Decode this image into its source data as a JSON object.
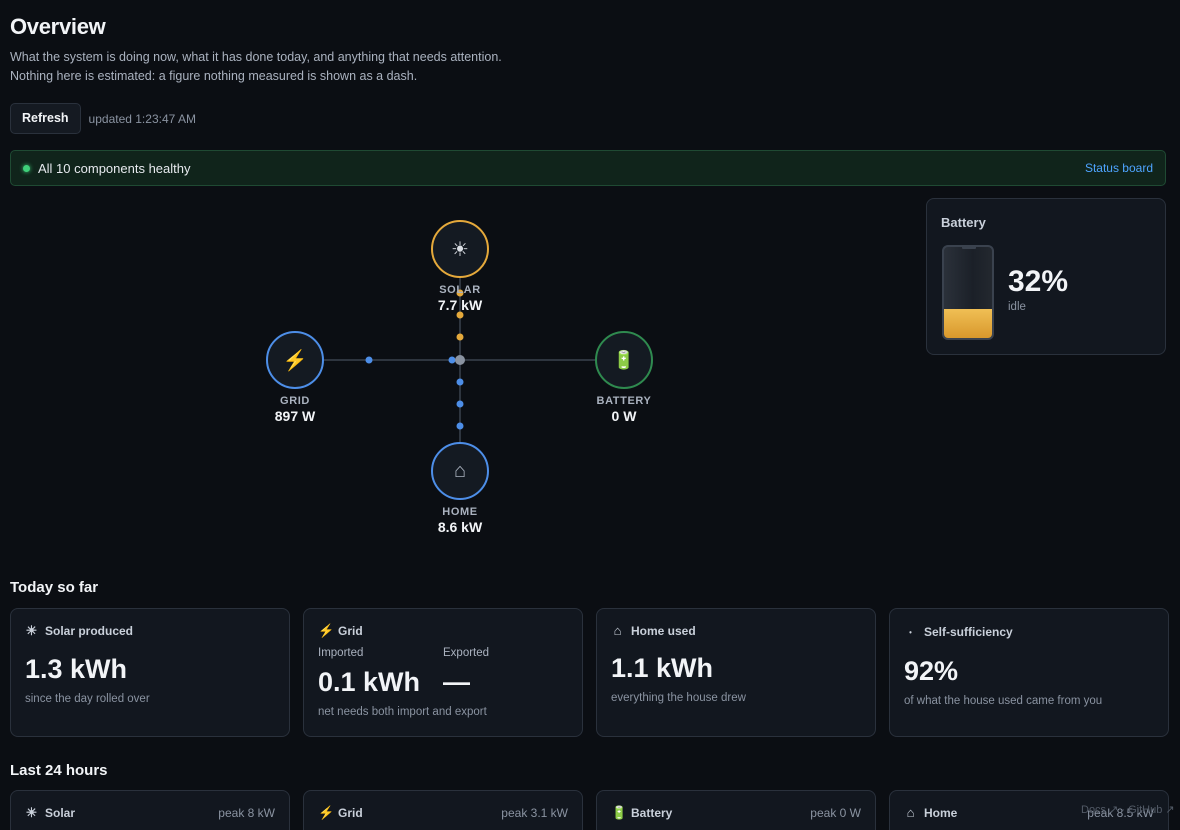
{
  "header": {
    "title": "Overview",
    "subtitle_line1": "What the system is doing now, what it has done today, and anything that needs attention.",
    "subtitle_line2": "Nothing here is estimated: a figure nothing measured is shown as a dash."
  },
  "toolbar": {
    "refresh_label": "Refresh",
    "updated_text": "updated 1:23:47 AM"
  },
  "health": {
    "message": "All 10 components healthy",
    "status_link": "Status board",
    "color": "#3fd07a"
  },
  "flow": {
    "solar": {
      "label": "SOLAR",
      "value": "7.7 kW",
      "icon": "sun-icon",
      "color": "#e5a93b"
    },
    "grid": {
      "label": "GRID",
      "value": "897 W",
      "icon": "bolt-icon",
      "color": "#4d8ee8"
    },
    "battery": {
      "label": "BATTERY",
      "value": "0 W",
      "icon": "battery-icon",
      "color": "#2f8a4f"
    },
    "home": {
      "label": "HOME",
      "value": "8.6 kW",
      "icon": "home-icon",
      "color": "#4d8ee8"
    }
  },
  "battery_card": {
    "title": "Battery",
    "percent": "32%",
    "level": 0.32,
    "state": "idle",
    "fill_color": "#e5a93b"
  },
  "today": {
    "title": "Today so far",
    "solar": {
      "title": "Solar produced",
      "value": "1.3 kWh",
      "caption": "since the day rolled over"
    },
    "grid": {
      "title": "Grid",
      "imported_label": "Imported",
      "imported_value": "0.1 kWh",
      "exported_label": "Exported",
      "exported_value": "—",
      "caption": "net needs both import and export"
    },
    "home": {
      "title": "Home used",
      "value": "1.1 kWh",
      "caption": "everything the house drew"
    },
    "selfsuff": {
      "title": "Self-sufficiency",
      "value": "92%",
      "caption": "of what the house used came from you"
    }
  },
  "last24": {
    "title": "Last 24 hours",
    "solar": {
      "title": "Solar",
      "peak": "peak 8 kW"
    },
    "grid": {
      "title": "Grid",
      "peak": "peak 3.1 kW"
    },
    "battery": {
      "title": "Battery",
      "peak": "peak 0 W"
    },
    "home": {
      "title": "Home",
      "peak": "peak 8.5 kW"
    }
  },
  "footer": {
    "text": "Docs ↗ · GitHub ↗"
  }
}
